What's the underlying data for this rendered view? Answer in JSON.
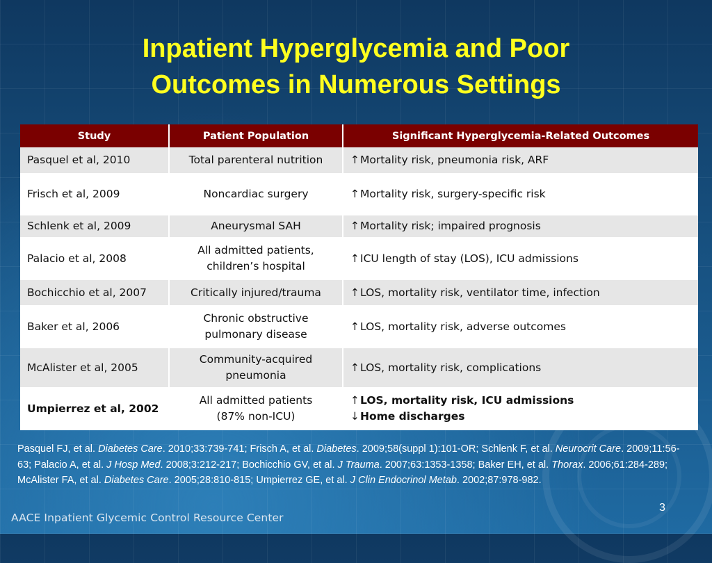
{
  "slide": {
    "title_line1": "Inpatient Hyperglycemia and Poor",
    "title_line2": "Outcomes in Numerous Settings",
    "page_number": "3",
    "footer": "AACE Inpatient Glycemic Control Resource Center"
  },
  "table": {
    "headers": [
      "Study",
      "Patient Population",
      "Significant Hyperglycemia-Related Outcomes"
    ],
    "rows": [
      {
        "study": "Pasquel et al, 2010",
        "pop1": "Total parenteral nutrition",
        "pop2": "",
        "arrow1": "↑",
        "out1": "Mortality risk, pneumonia risk, ARF",
        "arrow2": "",
        "out2": ""
      },
      {
        "study": "Frisch et al, 2009",
        "pop1": "Noncardiac surgery",
        "pop2": "",
        "arrow1": "↑",
        "out1": "Mortality risk, surgery-specific risk",
        "arrow2": "",
        "out2": ""
      },
      {
        "study": "Schlenk et al, 2009",
        "pop1": "Aneurysmal SAH",
        "pop2": "",
        "arrow1": "↑",
        "out1": "Mortality risk; impaired prognosis",
        "arrow2": "",
        "out2": ""
      },
      {
        "study": "Palacio et al, 2008",
        "pop1": "All admitted patients,",
        "pop2": "children’s hospital",
        "arrow1": "↑",
        "out1": "ICU length of stay (LOS), ICU admissions",
        "arrow2": "",
        "out2": ""
      },
      {
        "study": "Bochicchio et al, 2007",
        "pop1": "Critically injured/trauma",
        "pop2": "",
        "arrow1": "↑",
        "out1": "LOS, mortality risk, ventilator time, infection",
        "arrow2": "",
        "out2": ""
      },
      {
        "study": "Baker et al, 2006",
        "pop1": "Chronic obstructive",
        "pop2": "pulmonary disease",
        "arrow1": "↑",
        "out1": "LOS, mortality risk, adverse outcomes",
        "arrow2": "",
        "out2": ""
      },
      {
        "study": "McAlister et al, 2005",
        "pop1": "Community-acquired",
        "pop2": "pneumonia",
        "arrow1": "↑",
        "out1": "LOS, mortality risk, complications",
        "arrow2": "",
        "out2": ""
      },
      {
        "study": "Umpierrez et al, 2002",
        "pop1": "All admitted patients",
        "pop2": "(87% non-ICU)",
        "arrow1": "↑",
        "out1": "LOS, mortality risk, ICU admissions",
        "arrow2": "↓",
        "out2": "Home discharges"
      }
    ]
  },
  "references": [
    {
      "t": "Pasquel FJ, et al. ",
      "i": false
    },
    {
      "t": "Diabetes Care",
      "i": true
    },
    {
      "t": ". 2010;33:739-741; Frisch A, et al. ",
      "i": false
    },
    {
      "t": "Diabetes",
      "i": true
    },
    {
      "t": ". 2009;58(suppl 1):101-OR; Schlenk F, et al. ",
      "i": false
    },
    {
      "t": "Neurocrit Care",
      "i": true
    },
    {
      "t": ". 2009;11:56-63; Palacio A, et al. ",
      "i": false
    },
    {
      "t": "J Hosp Med",
      "i": true
    },
    {
      "t": ". 2008;3:212-217; Bochicchio GV, et al. ",
      "i": false
    },
    {
      "t": "J Trauma",
      "i": true
    },
    {
      "t": ". 2007;63:1353-1358; Baker EH, et al. ",
      "i": false
    },
    {
      "t": "Thorax",
      "i": true
    },
    {
      "t": ". 2006;61:284-289; McAlister FA, et al. ",
      "i": false
    },
    {
      "t": "Diabetes Care",
      "i": true
    },
    {
      "t": ". 2005;28:810-815; Umpierrez GE, et al. ",
      "i": false
    },
    {
      "t": "J Clin Endocrinol Metab",
      "i": true
    },
    {
      "t": ". 2002;87:978-982.",
      "i": false
    }
  ],
  "colors": {
    "title": "#ffff1f",
    "header_bg": "#7a0000",
    "row_gray": "#e6e6e6",
    "row_white": "#ffffff"
  }
}
